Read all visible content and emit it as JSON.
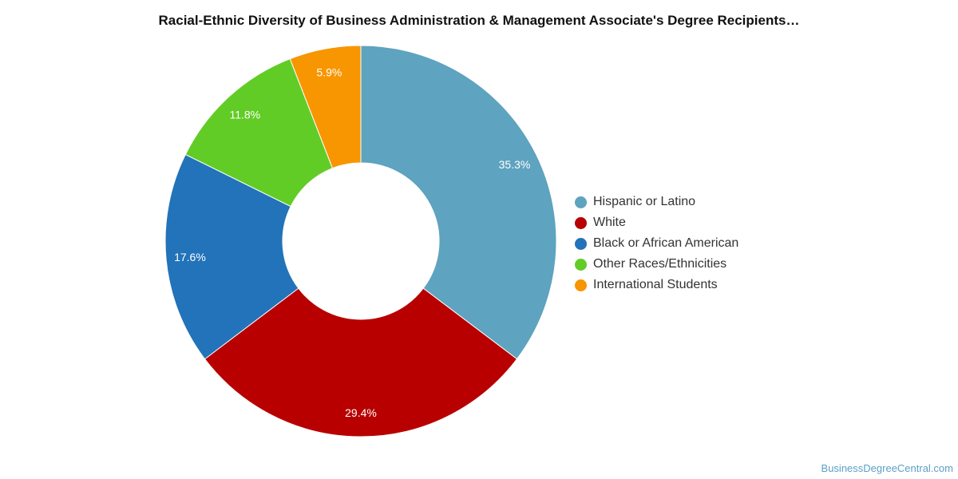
{
  "chart_data": {
    "type": "pie",
    "title": "Racial-Ethnic Diversity of Business Administration & Management Associate's Degree Recipients…",
    "donut": true,
    "legend_position": "right",
    "series": [
      {
        "name": "Hispanic or Latino",
        "value": 35.3,
        "label": "35.3%",
        "color": "#5ea3bf"
      },
      {
        "name": "White",
        "value": 29.4,
        "label": "29.4%",
        "color": "#b80000"
      },
      {
        "name": "Black or African American",
        "value": 17.6,
        "label": "17.6%",
        "color": "#2273b9"
      },
      {
        "name": "Other Races/Ethnicities",
        "value": 11.8,
        "label": "11.8%",
        "color": "#62cc26"
      },
      {
        "name": "International Students",
        "value": 5.9,
        "label": "5.9%",
        "color": "#f79600"
      }
    ]
  },
  "watermark": "BusinessDegreeCentral.com"
}
